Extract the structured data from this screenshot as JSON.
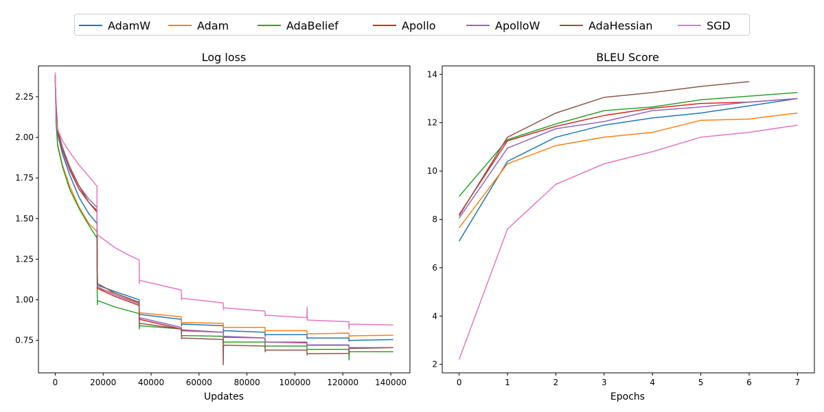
{
  "legend": {
    "entries": [
      {
        "name": "AdamW",
        "color": "#1f77b4"
      },
      {
        "name": "Adam",
        "color": "#ff7f0e"
      },
      {
        "name": "AdaBelief",
        "color": "#2ca02c"
      },
      {
        "name": "Apollo",
        "color": "#d62728"
      },
      {
        "name": "ApolloW",
        "color": "#9467bd"
      },
      {
        "name": "AdaHessian",
        "color": "#8c564b"
      },
      {
        "name": "SGD",
        "color": "#e377c2"
      }
    ]
  },
  "chart_data": [
    {
      "type": "line",
      "title": "Log loss",
      "xlabel": "Updates",
      "ylabel": "",
      "xlim": [
        -7000,
        148000
      ],
      "ylim": [
        0.55,
        2.44
      ],
      "xticks": [
        0,
        20000,
        40000,
        60000,
        80000,
        100000,
        120000,
        140000
      ],
      "xtick_labels": [
        "0",
        "20000",
        "40000",
        "60000",
        "80000",
        "100000",
        "120000",
        "140000"
      ],
      "yticks": [
        0.75,
        1.0,
        1.25,
        1.5,
        1.75,
        2.0,
        2.25
      ],
      "ytick_labels": [
        "0.75",
        "1.00",
        "1.25",
        "1.50",
        "1.75",
        "2.00",
        "2.25"
      ],
      "series": [
        {
          "name": "AdamW",
          "color": "#1f77b4",
          "x": [
            0,
            300,
            1000,
            3000,
            6000,
            10000,
            14000,
            17400,
            17500,
            17600,
            25000,
            35000,
            35100,
            35200,
            52600,
            52700,
            52800,
            70100,
            70200,
            70300,
            87500,
            87600,
            87700,
            105000,
            105100,
            105200,
            122500,
            122600,
            122700,
            141000
          ],
          "y": [
            2.38,
            2.15,
            2.02,
            1.9,
            1.77,
            1.63,
            1.53,
            1.47,
            1.3,
            1.09,
            1.05,
            1.0,
            0.9,
            0.91,
            0.88,
            0.84,
            0.85,
            0.84,
            0.8,
            0.81,
            0.8,
            0.775,
            0.785,
            0.785,
            0.76,
            0.765,
            0.765,
            0.745,
            0.75,
            0.755
          ]
        },
        {
          "name": "Adam",
          "color": "#ff7f0e",
          "x": [
            0,
            300,
            1000,
            3000,
            6000,
            10000,
            14000,
            17400,
            17500,
            17600,
            25000,
            35000,
            35100,
            35200,
            52600,
            52700,
            52800,
            70100,
            70200,
            70300,
            87500,
            87600,
            87700,
            105000,
            105100,
            105200,
            122500,
            122600,
            122700,
            141000
          ],
          "y": [
            2.38,
            2.12,
            1.96,
            1.83,
            1.7,
            1.57,
            1.47,
            1.42,
            1.25,
            1.07,
            1.04,
            0.98,
            0.91,
            0.92,
            0.895,
            0.855,
            0.86,
            0.855,
            0.825,
            0.83,
            0.83,
            0.8,
            0.81,
            0.81,
            0.785,
            0.79,
            0.795,
            0.77,
            0.778,
            0.782
          ]
        },
        {
          "name": "AdaBelief",
          "color": "#2ca02c",
          "x": [
            0,
            300,
            1000,
            3000,
            6000,
            10000,
            14000,
            17400,
            17500,
            17600,
            17700,
            25000,
            35000,
            35100,
            35200,
            35300,
            52600,
            52700,
            52800,
            70100,
            70200,
            70300,
            87500,
            87600,
            87700,
            105000,
            105100,
            105200,
            122500,
            122600,
            122700,
            141000
          ],
          "y": [
            2.38,
            2.1,
            1.95,
            1.82,
            1.68,
            1.56,
            1.46,
            1.38,
            1.06,
            0.97,
            0.995,
            0.955,
            0.915,
            0.82,
            0.845,
            0.84,
            0.82,
            0.775,
            0.78,
            0.775,
            0.73,
            0.74,
            0.74,
            0.71,
            0.715,
            0.715,
            0.69,
            0.695,
            0.695,
            0.63,
            0.68,
            0.68
          ]
        },
        {
          "name": "Apollo",
          "color": "#d62728",
          "x": [
            0,
            300,
            1000,
            3000,
            6000,
            10000,
            14000,
            17400,
            17500,
            17600,
            25000,
            35000,
            35100,
            35200,
            52600,
            52700,
            52800,
            70100,
            70200,
            70300,
            87500,
            87600,
            87700,
            105000,
            105100,
            105200,
            122500,
            122600,
            122700,
            141000
          ],
          "y": [
            2.38,
            2.2,
            2.03,
            1.92,
            1.8,
            1.68,
            1.6,
            1.54,
            1.3,
            1.07,
            1.02,
            0.965,
            0.87,
            0.88,
            0.82,
            0.805,
            0.81,
            0.8,
            0.765,
            0.77,
            0.765,
            0.735,
            0.74,
            0.735,
            0.715,
            0.72,
            0.72,
            0.7,
            0.705,
            0.705
          ]
        },
        {
          "name": "ApolloW",
          "color": "#9467bd",
          "x": [
            0,
            300,
            1000,
            3000,
            6000,
            10000,
            14000,
            17400,
            17500,
            17600,
            25000,
            35000,
            35100,
            35200,
            52600,
            52700,
            52800,
            70100,
            70200,
            70300,
            87500,
            87600,
            87700,
            105000,
            105100,
            105200,
            122500,
            122600,
            122700,
            141000
          ],
          "y": [
            2.38,
            2.21,
            2.04,
            1.93,
            1.81,
            1.7,
            1.62,
            1.57,
            1.3,
            1.08,
            1.03,
            0.975,
            0.88,
            0.89,
            0.83,
            0.81,
            0.815,
            0.8,
            0.77,
            0.775,
            0.765,
            0.735,
            0.74,
            0.74,
            0.72,
            0.722,
            0.722,
            0.7,
            0.705,
            0.705
          ]
        },
        {
          "name": "AdaHessian",
          "color": "#8c564b",
          "x": [
            0,
            300,
            1000,
            3000,
            6000,
            10000,
            14000,
            17400,
            17500,
            17600,
            25000,
            35000,
            35100,
            35200,
            52600,
            52700,
            52800,
            70000,
            70100,
            70200,
            70300,
            87500,
            87600,
            87700,
            105000,
            105100,
            105200,
            122500,
            122600,
            122700,
            141000
          ],
          "y": [
            2.38,
            2.22,
            2.05,
            1.94,
            1.82,
            1.7,
            1.6,
            1.55,
            1.3,
            1.1,
            1.04,
            0.985,
            0.85,
            0.855,
            0.82,
            0.76,
            0.765,
            0.755,
            0.6,
            0.72,
            0.72,
            0.715,
            0.68,
            0.69,
            0.69,
            0.66,
            0.668,
            0.67,
            0.7,
            0.7,
            0.705
          ]
        },
        {
          "name": "SGD",
          "color": "#e377c2",
          "x": [
            0,
            300,
            1000,
            3000,
            6000,
            10000,
            14000,
            17400,
            17500,
            17600,
            25000,
            30000,
            35000,
            35100,
            35200,
            52600,
            52700,
            52800,
            70100,
            70200,
            70300,
            87500,
            87600,
            87700,
            105000,
            105100,
            105200,
            122500,
            122600,
            122700,
            141000
          ],
          "y": [
            2.4,
            2.12,
            2.05,
            1.98,
            1.91,
            1.83,
            1.76,
            1.7,
            1.45,
            1.4,
            1.32,
            1.28,
            1.245,
            1.1,
            1.12,
            1.06,
            1.0,
            1.01,
            0.98,
            0.94,
            0.95,
            0.93,
            0.9,
            0.905,
            0.89,
            0.955,
            0.875,
            0.865,
            0.82,
            0.85,
            0.845
          ]
        }
      ]
    },
    {
      "type": "line",
      "title": "BLEU Score",
      "xlabel": "Epochs",
      "ylabel": "",
      "xlim": [
        -0.35,
        7.35
      ],
      "ylim": [
        1.65,
        14.35
      ],
      "xticks": [
        0,
        1,
        2,
        3,
        4,
        5,
        6,
        7
      ],
      "xtick_labels": [
        "0",
        "1",
        "2",
        "3",
        "4",
        "5",
        "6",
        "7"
      ],
      "yticks": [
        2,
        4,
        6,
        8,
        10,
        12,
        14
      ],
      "ytick_labels": [
        "2",
        "4",
        "6",
        "8",
        "10",
        "12",
        "14"
      ],
      "series": [
        {
          "name": "AdamW",
          "color": "#1f77b4",
          "x": [
            0,
            1,
            2,
            3,
            4,
            5,
            6,
            7
          ],
          "y": [
            7.1,
            10.4,
            11.4,
            11.9,
            12.2,
            12.4,
            12.7,
            13.0
          ]
        },
        {
          "name": "Adam",
          "color": "#ff7f0e",
          "x": [
            0,
            1,
            2,
            3,
            4,
            5,
            6,
            7
          ],
          "y": [
            7.65,
            10.3,
            11.05,
            11.4,
            11.6,
            12.1,
            12.15,
            12.4
          ]
        },
        {
          "name": "AdaBelief",
          "color": "#2ca02c",
          "x": [
            0,
            1,
            2,
            3,
            4,
            5,
            6,
            7
          ],
          "y": [
            8.95,
            11.3,
            11.95,
            12.5,
            12.65,
            12.95,
            13.1,
            13.25
          ]
        },
        {
          "name": "Apollo",
          "color": "#d62728",
          "x": [
            0,
            1,
            2,
            3,
            4,
            5,
            6,
            7
          ],
          "y": [
            8.2,
            11.25,
            11.85,
            12.3,
            12.6,
            12.8,
            12.85,
            13.0
          ]
        },
        {
          "name": "ApolloW",
          "color": "#9467bd",
          "x": [
            0,
            1,
            2,
            3,
            4,
            5,
            6,
            7
          ],
          "y": [
            8.05,
            10.95,
            11.75,
            12.05,
            12.5,
            12.65,
            12.85,
            13.0
          ]
        },
        {
          "name": "AdaHessian",
          "color": "#8c564b",
          "x": [
            0,
            1,
            2,
            3,
            4,
            5,
            6
          ],
          "y": [
            8.15,
            11.4,
            12.4,
            13.05,
            13.25,
            13.5,
            13.7
          ]
        },
        {
          "name": "SGD",
          "color": "#e377c2",
          "x": [
            0,
            1,
            2,
            3,
            4,
            5,
            6,
            7
          ],
          "y": [
            2.2,
            7.6,
            9.45,
            10.3,
            10.8,
            11.4,
            11.6,
            11.9
          ]
        }
      ]
    }
  ]
}
